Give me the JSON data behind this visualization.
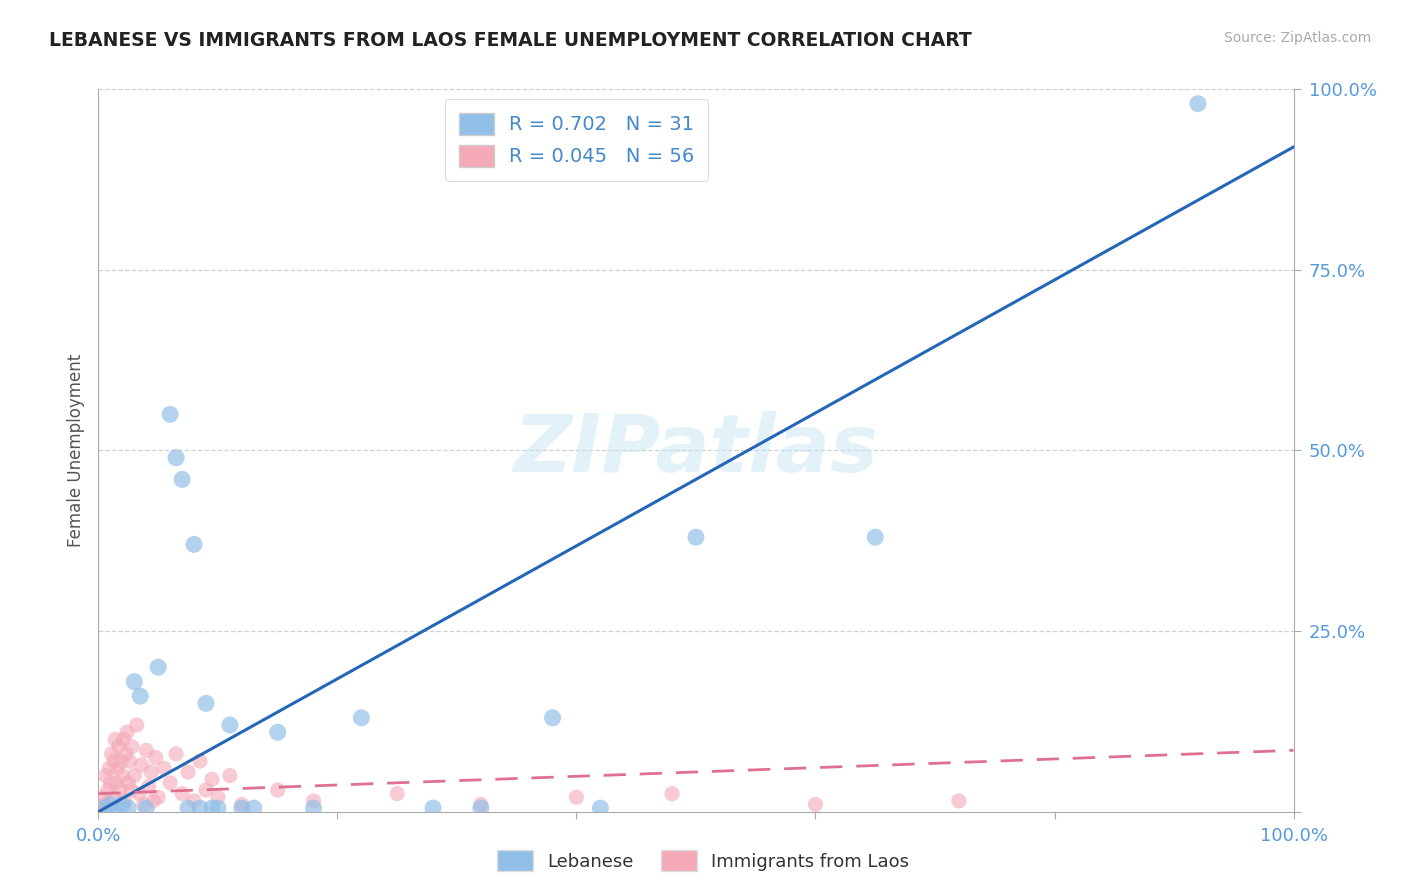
{
  "title": "LEBANESE VS IMMIGRANTS FROM LAOS FEMALE UNEMPLOYMENT CORRELATION CHART",
  "source": "Source: ZipAtlas.com",
  "ylabel": "Female Unemployment",
  "xlim": [
    0.0,
    1.0
  ],
  "ylim": [
    0.0,
    1.0
  ],
  "lebanese_R": 0.702,
  "lebanese_N": 31,
  "laos_R": 0.045,
  "laos_N": 56,
  "lebanese_color": "#92bfe8",
  "laos_color": "#f4a8b8",
  "lebanese_line_color": "#2467b8",
  "laos_line_color": "#e07090",
  "watermark": "ZIPatlas",
  "leb_x": [
    0.005,
    0.01,
    0.015,
    0.02,
    0.025,
    0.03,
    0.035,
    0.04,
    0.05,
    0.06,
    0.065,
    0.07,
    0.075,
    0.08,
    0.085,
    0.09,
    0.095,
    0.1,
    0.11,
    0.12,
    0.13,
    0.15,
    0.18,
    0.22,
    0.28,
    0.32,
    0.38,
    0.42,
    0.5,
    0.65,
    0.92
  ],
  "leb_y": [
    0.005,
    0.01,
    0.005,
    0.01,
    0.005,
    0.18,
    0.16,
    0.005,
    0.2,
    0.55,
    0.49,
    0.46,
    0.005,
    0.37,
    0.005,
    0.15,
    0.005,
    0.005,
    0.12,
    0.005,
    0.005,
    0.11,
    0.005,
    0.13,
    0.005,
    0.005,
    0.13,
    0.005,
    0.38,
    0.38,
    0.98
  ],
  "laos_x": [
    0.002,
    0.004,
    0.005,
    0.006,
    0.008,
    0.009,
    0.01,
    0.011,
    0.012,
    0.013,
    0.014,
    0.015,
    0.016,
    0.017,
    0.018,
    0.019,
    0.02,
    0.021,
    0.022,
    0.023,
    0.024,
    0.025,
    0.026,
    0.027,
    0.028,
    0.03,
    0.032,
    0.034,
    0.036,
    0.038,
    0.04,
    0.042,
    0.044,
    0.046,
    0.048,
    0.05,
    0.055,
    0.06,
    0.065,
    0.07,
    0.075,
    0.08,
    0.085,
    0.09,
    0.095,
    0.1,
    0.11,
    0.12,
    0.15,
    0.18,
    0.25,
    0.32,
    0.4,
    0.48,
    0.6,
    0.72
  ],
  "laos_y": [
    0.005,
    0.02,
    0.01,
    0.05,
    0.03,
    0.06,
    0.04,
    0.08,
    0.02,
    0.07,
    0.1,
    0.04,
    0.06,
    0.09,
    0.03,
    0.07,
    0.05,
    0.1,
    0.015,
    0.08,
    0.11,
    0.04,
    0.07,
    0.03,
    0.09,
    0.05,
    0.12,
    0.025,
    0.065,
    0.01,
    0.085,
    0.035,
    0.055,
    0.015,
    0.075,
    0.02,
    0.06,
    0.04,
    0.08,
    0.025,
    0.055,
    0.015,
    0.07,
    0.03,
    0.045,
    0.02,
    0.05,
    0.01,
    0.03,
    0.015,
    0.025,
    0.01,
    0.02,
    0.025,
    0.01,
    0.015
  ],
  "leb_line_x": [
    0.0,
    1.0
  ],
  "leb_line_y": [
    0.0,
    0.92
  ],
  "laos_line_x": [
    0.0,
    1.0
  ],
  "laos_line_y": [
    0.025,
    0.085
  ]
}
